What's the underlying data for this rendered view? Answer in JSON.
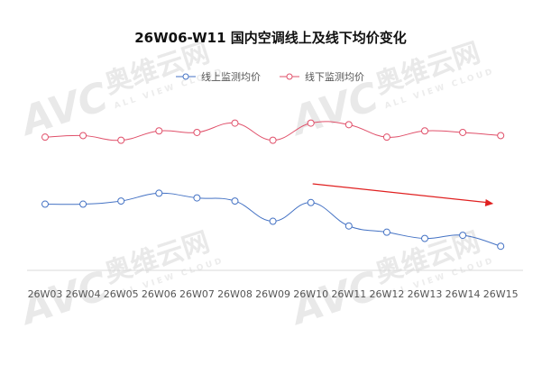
{
  "chart_data": {
    "type": "line",
    "title": "26W06-W11 国内空调线上及线下均价变化",
    "categories": [
      "26W03",
      "26W04",
      "26W05",
      "26W06",
      "26W07",
      "26W08",
      "26W09",
      "26W10",
      "26W11",
      "26W12",
      "26W13",
      "26W14",
      "26W15"
    ],
    "series": [
      {
        "name": "线上监测均价",
        "color": "#4472c4",
        "values": [
          2810,
          2810,
          2790,
          2740,
          2770,
          2790,
          2920,
          2800,
          2950,
          2990,
          3030,
          3010,
          3080
        ]
      },
      {
        "name": "线下监测均价",
        "color": "#e0506a",
        "values": [
          2380,
          2370,
          2400,
          2340,
          2350,
          2290,
          2400,
          2290,
          2300,
          2380,
          2340,
          2350,
          2370
        ]
      }
    ],
    "ylim": [
      1500,
      3900
    ],
    "y_reversed": true,
    "legend_position": "top-center",
    "grid": false,
    "trend_arrow": {
      "from_category": "26W10",
      "to_category": "26W15",
      "color": "#e02020"
    }
  },
  "watermark": {
    "brand": "奥维云网",
    "logo": "AVC",
    "sub": "ALL VIEW CLOUD"
  }
}
